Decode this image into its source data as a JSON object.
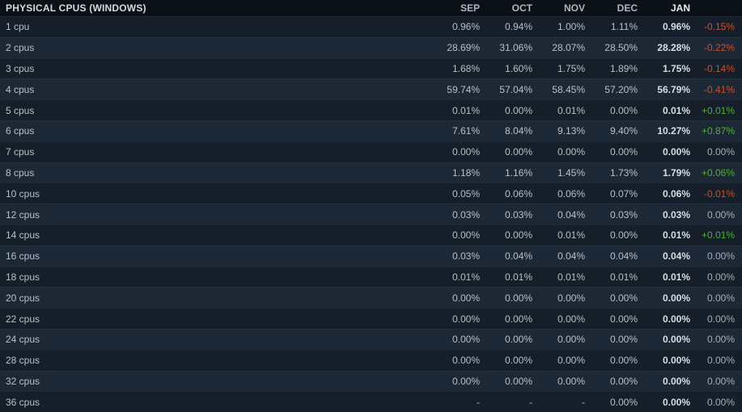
{
  "table": {
    "title": "PHYSICAL CPUS (WINDOWS)",
    "columns": [
      "SEP",
      "OCT",
      "NOV",
      "DEC",
      "JAN"
    ],
    "rows": [
      {
        "label": "1 cpu",
        "values": [
          "0.96%",
          "0.94%",
          "1.00%",
          "1.11%",
          "0.96%"
        ],
        "change": "-0.15%",
        "trend": "down"
      },
      {
        "label": "2 cpus",
        "values": [
          "28.69%",
          "31.06%",
          "28.07%",
          "28.50%",
          "28.28%"
        ],
        "change": "-0.22%",
        "trend": "down"
      },
      {
        "label": "3 cpus",
        "values": [
          "1.68%",
          "1.60%",
          "1.75%",
          "1.89%",
          "1.75%"
        ],
        "change": "-0.14%",
        "trend": "down"
      },
      {
        "label": "4 cpus",
        "values": [
          "59.74%",
          "57.04%",
          "58.45%",
          "57.20%",
          "56.79%"
        ],
        "change": "-0.41%",
        "trend": "down"
      },
      {
        "label": "5 cpus",
        "values": [
          "0.01%",
          "0.00%",
          "0.01%",
          "0.00%",
          "0.01%"
        ],
        "change": "+0.01%",
        "trend": "up"
      },
      {
        "label": "6 cpus",
        "values": [
          "7.61%",
          "8.04%",
          "9.13%",
          "9.40%",
          "10.27%"
        ],
        "change": "+0.87%",
        "trend": "up"
      },
      {
        "label": "7 cpus",
        "values": [
          "0.00%",
          "0.00%",
          "0.00%",
          "0.00%",
          "0.00%"
        ],
        "change": "0.00%",
        "trend": "flat"
      },
      {
        "label": "8 cpus",
        "values": [
          "1.18%",
          "1.16%",
          "1.45%",
          "1.73%",
          "1.79%"
        ],
        "change": "+0.06%",
        "trend": "up"
      },
      {
        "label": "10 cpus",
        "values": [
          "0.05%",
          "0.06%",
          "0.06%",
          "0.07%",
          "0.06%"
        ],
        "change": "-0.01%",
        "trend": "down"
      },
      {
        "label": "12 cpus",
        "values": [
          "0.03%",
          "0.03%",
          "0.04%",
          "0.03%",
          "0.03%"
        ],
        "change": "0.00%",
        "trend": "flat"
      },
      {
        "label": "14 cpus",
        "values": [
          "0.00%",
          "0.00%",
          "0.01%",
          "0.00%",
          "0.01%"
        ],
        "change": "+0.01%",
        "trend": "up"
      },
      {
        "label": "16 cpus",
        "values": [
          "0.03%",
          "0.04%",
          "0.04%",
          "0.04%",
          "0.04%"
        ],
        "change": "0.00%",
        "trend": "flat"
      },
      {
        "label": "18 cpus",
        "values": [
          "0.01%",
          "0.01%",
          "0.01%",
          "0.01%",
          "0.01%"
        ],
        "change": "0.00%",
        "trend": "flat"
      },
      {
        "label": "20 cpus",
        "values": [
          "0.00%",
          "0.00%",
          "0.00%",
          "0.00%",
          "0.00%"
        ],
        "change": "0.00%",
        "trend": "flat"
      },
      {
        "label": "22 cpus",
        "values": [
          "0.00%",
          "0.00%",
          "0.00%",
          "0.00%",
          "0.00%"
        ],
        "change": "0.00%",
        "trend": "flat"
      },
      {
        "label": "24 cpus",
        "values": [
          "0.00%",
          "0.00%",
          "0.00%",
          "0.00%",
          "0.00%"
        ],
        "change": "0.00%",
        "trend": "flat"
      },
      {
        "label": "28 cpus",
        "values": [
          "0.00%",
          "0.00%",
          "0.00%",
          "0.00%",
          "0.00%"
        ],
        "change": "0.00%",
        "trend": "flat"
      },
      {
        "label": "32 cpus",
        "values": [
          "0.00%",
          "0.00%",
          "0.00%",
          "0.00%",
          "0.00%"
        ],
        "change": "0.00%",
        "trend": "flat"
      },
      {
        "label": "36 cpus",
        "values": [
          "-",
          "-",
          "-",
          "0.00%",
          "0.00%"
        ],
        "change": "0.00%",
        "trend": "flat"
      }
    ]
  },
  "colors": {
    "header_bg": "#0c1118",
    "row_dark": "#151e29",
    "row_light": "#1d2836",
    "text": "#b6c0c9",
    "text_bold": "#d6dee5",
    "positive": "#4fb232",
    "negative": "#c9502e",
    "neutral": "#a4aeb7"
  }
}
